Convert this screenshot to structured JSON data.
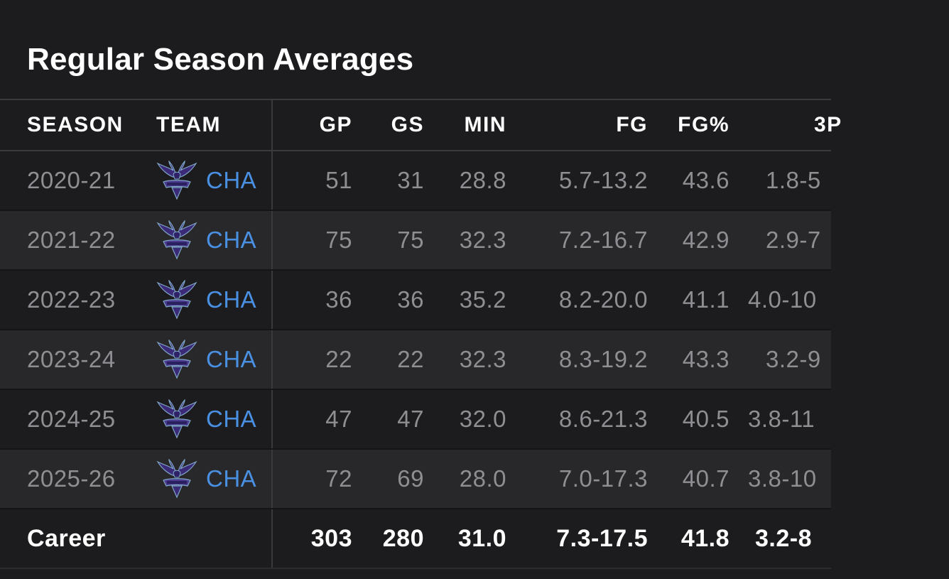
{
  "title": "Regular Season Averages",
  "colors": {
    "background": "#1c1c1e",
    "alt_row": "#28282a",
    "team_link": "#4a90e2",
    "muted_text": "#8e8e93"
  },
  "columns": {
    "season": "SEASON",
    "team": "TEAM",
    "gp": "GP",
    "gs": "GS",
    "min": "MIN",
    "fg": "FG",
    "fgp": "FG%",
    "tp": "3P"
  },
  "rows": [
    {
      "season": "2020-21",
      "team": "CHA",
      "logo": "hornets-logo",
      "gp": "51",
      "gs": "31",
      "min": "28.8",
      "fg": "5.7-13.2",
      "fgp": "43.6",
      "tp": "1.8-5"
    },
    {
      "season": "2021-22",
      "team": "CHA",
      "logo": "hornets-logo",
      "gp": "75",
      "gs": "75",
      "min": "32.3",
      "fg": "7.2-16.7",
      "fgp": "42.9",
      "tp": "2.9-7"
    },
    {
      "season": "2022-23",
      "team": "CHA",
      "logo": "hornets-logo",
      "gp": "36",
      "gs": "36",
      "min": "35.2",
      "fg": "8.2-20.0",
      "fgp": "41.1",
      "tp": "4.0-10"
    },
    {
      "season": "2023-24",
      "team": "CHA",
      "logo": "hornets-logo",
      "gp": "22",
      "gs": "22",
      "min": "32.3",
      "fg": "8.3-19.2",
      "fgp": "43.3",
      "tp": "3.2-9"
    },
    {
      "season": "2024-25",
      "team": "CHA",
      "logo": "hornets-logo",
      "gp": "47",
      "gs": "47",
      "min": "32.0",
      "fg": "8.6-21.3",
      "fgp": "40.5",
      "tp": "3.8-11"
    },
    {
      "season": "2025-26",
      "team": "CHA",
      "logo": "hornets-logo",
      "gp": "72",
      "gs": "69",
      "min": "28.0",
      "fg": "7.0-17.3",
      "fgp": "40.7",
      "tp": "3.8-10"
    }
  ],
  "career": {
    "label": "Career",
    "gp": "303",
    "gs": "280",
    "min": "31.0",
    "fg": "7.3-17.5",
    "fgp": "41.8",
    "tp": "3.2-8"
  }
}
